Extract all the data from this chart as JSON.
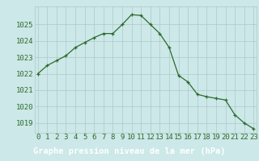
{
  "x": [
    0,
    1,
    2,
    3,
    4,
    5,
    6,
    7,
    8,
    9,
    10,
    11,
    12,
    13,
    14,
    15,
    16,
    17,
    18,
    19,
    20,
    21,
    22,
    23
  ],
  "y": [
    1022.0,
    1022.5,
    1022.8,
    1023.1,
    1023.6,
    1023.9,
    1024.2,
    1024.45,
    1024.45,
    1025.0,
    1025.6,
    1025.55,
    1025.0,
    1024.45,
    1023.6,
    1021.9,
    1021.5,
    1020.75,
    1020.6,
    1020.5,
    1020.4,
    1019.5,
    1019.0,
    1018.65
  ],
  "line_color": "#2d6a2d",
  "marker_color": "#2d6a2d",
  "bg_color": "#cce8e8",
  "label_bg_color": "#2d6a2d",
  "label_text_color": "#ffffff",
  "grid_color": "#b0c8c8",
  "tick_color": "#2d6a2d",
  "xlabel": "Graphe pression niveau de la mer (hPa)",
  "xlabel_fontsize": 7.5,
  "tick_fontsize": 6.5,
  "ylim": [
    1018.4,
    1026.1
  ],
  "yticks": [
    1019,
    1020,
    1021,
    1022,
    1023,
    1024,
    1025
  ],
  "xticks": [
    0,
    1,
    2,
    3,
    4,
    5,
    6,
    7,
    8,
    9,
    10,
    11,
    12,
    13,
    14,
    15,
    16,
    17,
    18,
    19,
    20,
    21,
    22,
    23
  ],
  "xlim": [
    -0.3,
    23.3
  ]
}
